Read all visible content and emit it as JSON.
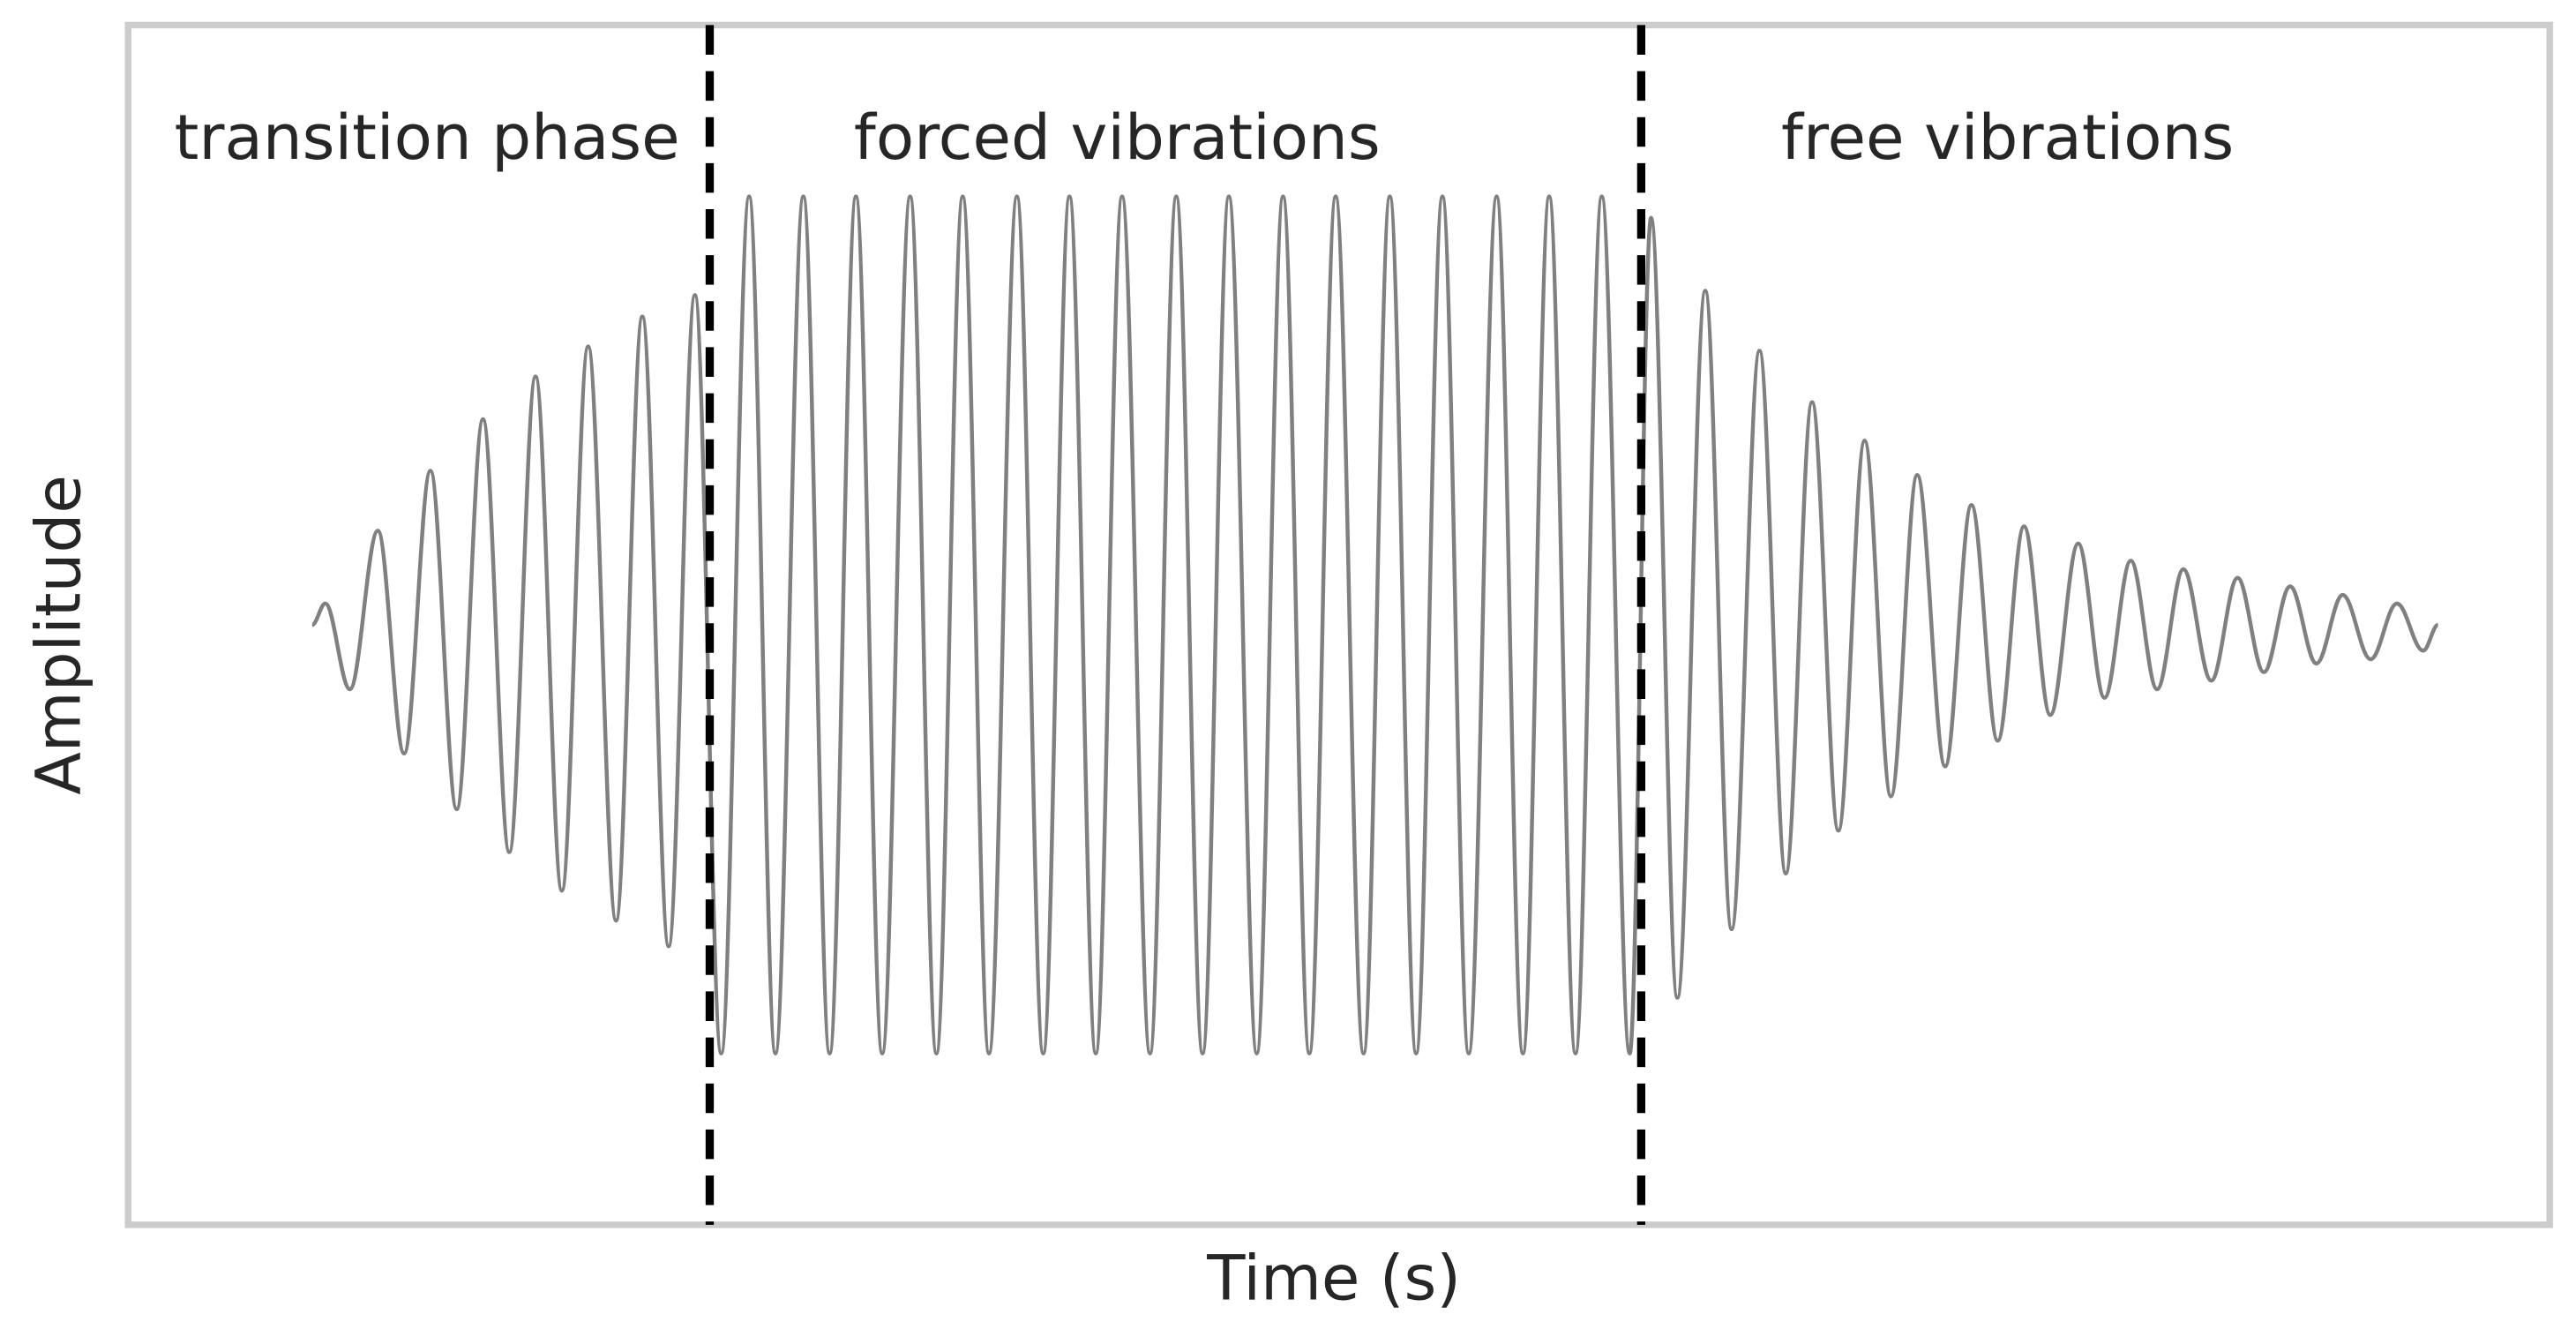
{
  "chart_data": {
    "type": "line",
    "xlabel": "Time (s)",
    "ylabel": "Amplitude",
    "annotations": [
      "transition phase",
      "forced vibrations",
      "free vibrations"
    ],
    "vlines": [
      3.54,
      9.21
    ],
    "vline_color": "#000000",
    "xlim": [
      0,
      14.74
    ],
    "ylim": [
      -1.4,
      1.4
    ],
    "x": [
      1.12,
      1.2,
      1.35,
      1.52,
      1.68,
      1.84,
      2.0,
      2.16,
      2.32,
      2.48,
      2.64,
      2.8,
      2.97,
      3.13,
      3.29,
      3.45,
      3.61,
      3.78,
      3.94,
      4.11,
      4.27,
      4.43,
      4.59,
      4.76,
      4.92,
      5.08,
      5.24,
      5.41,
      5.57,
      5.73,
      5.89,
      6.05,
      6.22,
      6.38,
      6.54,
      6.7,
      6.87,
      7.03,
      7.19,
      7.35,
      7.52,
      7.68,
      7.84,
      8.0,
      8.16,
      8.33,
      8.49,
      8.65,
      8.81,
      8.97,
      9.14,
      9.27,
      9.43,
      9.6,
      9.76,
      9.93,
      10.09,
      10.25,
      10.41,
      10.57,
      10.73,
      10.89,
      11.06,
      11.22,
      11.38,
      11.54,
      11.7,
      11.87,
      12.03,
      12.19,
      12.35,
      12.51,
      12.68,
      12.84,
      13.0,
      13.16,
      13.32,
      13.48,
      13.65,
      13.81,
      13.97,
      14.06
    ],
    "series": [
      {
        "color": "#808080",
        "values": [
          0,
          0.05,
          -0.15,
          0.22,
          -0.3,
          0.36,
          -0.43,
          0.48,
          -0.53,
          0.58,
          -0.62,
          0.65,
          -0.69,
          0.72,
          -0.75,
          0.77,
          -1,
          1,
          -1,
          1,
          -1,
          1,
          -1,
          1,
          -1,
          1,
          -1,
          1,
          -1,
          1,
          -1,
          1,
          -1,
          1,
          -1,
          1,
          -1,
          1,
          -1,
          1,
          -1,
          1,
          -1,
          1,
          -1,
          1,
          -1,
          1,
          -1,
          1,
          -1,
          0.95,
          -0.87,
          0.78,
          -0.71,
          0.64,
          -0.58,
          0.52,
          -0.48,
          0.43,
          -0.4,
          0.35,
          -0.33,
          0.28,
          -0.27,
          0.23,
          -0.21,
          0.19,
          -0.17,
          0.15,
          -0.15,
          0.13,
          -0.13,
          0.11,
          -0.11,
          0.09,
          -0.09,
          0.07,
          -0.08,
          0.05,
          -0.06,
          0
        ]
      }
    ]
  }
}
